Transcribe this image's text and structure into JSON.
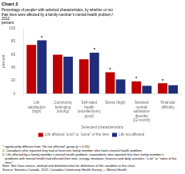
{
  "chart_data": {
    "type": "bar",
    "title": "Chart 2",
    "subtitle": [
      "Percentage of people¹ with selected characteristics, by whether or not",
      "their lives were affected by a family member’s mental health problem,²",
      "2012",
      "percent"
    ],
    "ylabel": "percent",
    "xlabel": "Selected characteristics",
    "categories": [
      "Life satisfaction\n(high)",
      "Community\nbelonging (strong)",
      "Self-rated health\n(excellent/very good)",
      "Stress (high)",
      "Selected mental/\nsubstance disorder\n(12-month)",
      "Financial difficulty"
    ],
    "series": [
      {
        "name": "Life affected “a lot” or “some” of the time",
        "color": "#c00000",
        "values": [
          75,
          60,
          53,
          33,
          19,
          16
        ]
      },
      {
        "name": "Life not affected",
        "color": "#1f2d7b",
        "values": [
          82,
          57,
          63,
          22,
          12,
          13
        ]
      }
    ],
    "ylim": [
      0,
      100
    ],
    "yticks": [
      0,
      20,
      40,
      60,
      80,
      100
    ],
    "grid": false,
    "legend": "bottom",
    "annotations": [
      {
        "text": "*",
        "category": "Life satisfaction\n(high)",
        "series": "Life not affected"
      },
      {
        "text": "*",
        "category": "Self-rated health\n(excellent/very good)",
        "series": "Life not affected"
      },
      {
        "text": "*",
        "category": "Stress (high)",
        "series": "Life affected “a lot” or “some” of the time"
      },
      {
        "text": "*",
        "category": "Selected mental/\nsubstance disorder\n(12-month)",
        "series": "Life affected “a lot” or “some” of the time"
      },
      {
        "text": "*",
        "category": "Financial difficulty",
        "series": "Life affected “a lot” or “some” of the time"
      }
    ],
    "footnotes": [
      "* significantly different from “life not affected” group (p < 0.05).",
      "1. Canadians who reported they had at least one family member who had a mental health problem.",
      "2. Life affected by a family member’s mental health problem: respondents who reported that their family member’s",
      "   problems with mental health had affected their time, energy, emotions, finances and daily activities, “a lot” or “some of the",
      "   time.\"",
      "Note: See Data source, method and definitions box for definitions of the variables in this chart.",
      "Source: Statistics Canada, 2012, Canadian Community Health Survey — Mental Health."
    ]
  }
}
